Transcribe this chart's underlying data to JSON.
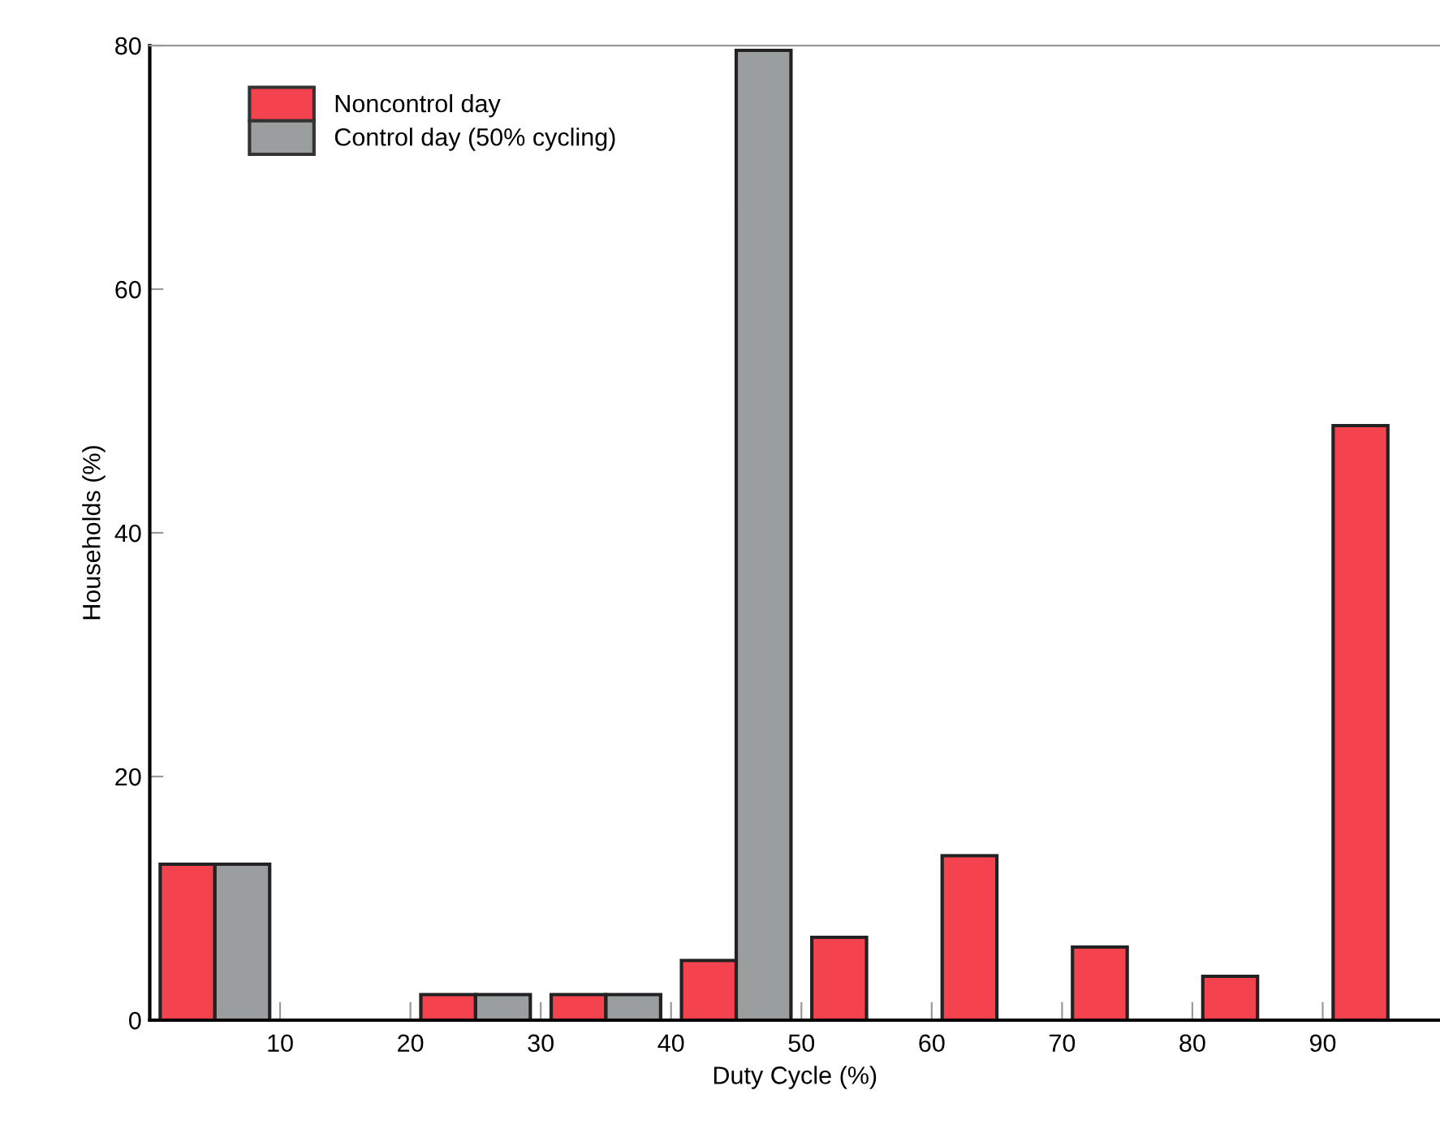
{
  "chart_data": {
    "type": "bar",
    "xlabel": "Duty Cycle (%)",
    "ylabel": "Households (%)",
    "series": [
      {
        "name": "Noncontrol day",
        "color": "#f5424f",
        "x": [
          2.9,
          22.9,
          32.9,
          42.9,
          52.9,
          62.9,
          72.9,
          82.9,
          92.9
        ],
        "values": [
          12.8,
          2.1,
          2.1,
          4.9,
          6.8,
          13.5,
          6.0,
          3.6,
          48.8
        ]
      },
      {
        "name": "Control day (50% cycling)",
        "color": "#9a9e9e",
        "x": [
          7.1,
          27.1,
          37.1,
          47.1
        ],
        "values": [
          12.8,
          2.1,
          2.1,
          79.6
        ]
      }
    ],
    "xlim": [
      0,
      99
    ],
    "xticks": [
      10,
      20,
      30,
      40,
      50,
      60,
      70,
      80,
      90
    ],
    "ylim": [
      0,
      80
    ],
    "yticks": [
      0,
      20,
      40,
      60,
      80
    ],
    "grid": false,
    "legend": "top left"
  }
}
